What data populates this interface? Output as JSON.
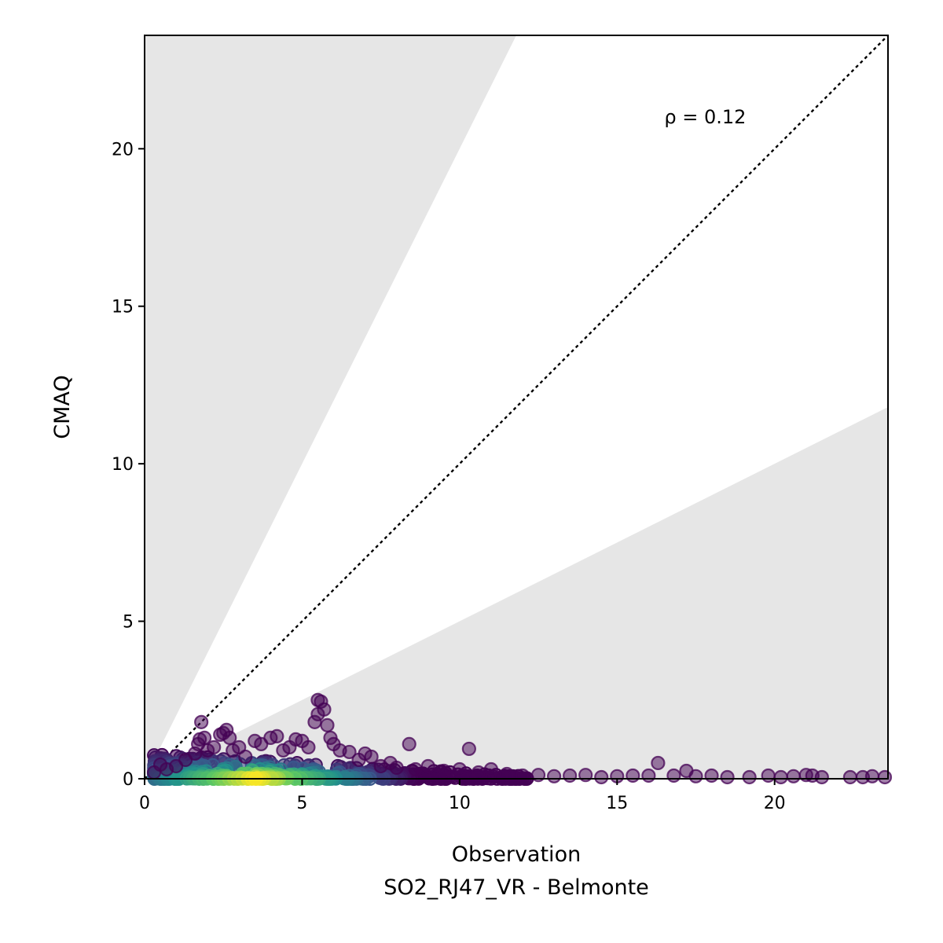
{
  "chart_data": {
    "type": "scatter",
    "title": "",
    "xlabel": "Observation",
    "xlabel_sub": "SO2_RJ47_VR - Belmonte",
    "ylabel": "CMAQ",
    "xlim": [
      0,
      23.6
    ],
    "ylim": [
      0,
      23.6
    ],
    "xticks": [
      0,
      5,
      10,
      15,
      20
    ],
    "yticks": [
      0,
      5,
      10,
      15,
      20
    ],
    "grid": false,
    "legend": "none",
    "annotation": "ρ = 0.12",
    "reference_line": {
      "type": "1:1",
      "style": "dotted",
      "color": "#000000"
    },
    "shaded_regions": [
      {
        "name": "above 2:1",
        "color": "#e6e6e6"
      },
      {
        "name": "below 1:2",
        "color": "#e6e6e6"
      }
    ],
    "colormap": "viridis (point density)",
    "colors": {
      "high_density": "#fde725",
      "mid_density": "#21918c",
      "low_density": "#440154"
    },
    "points": [
      {
        "x": 0.3,
        "y": 0.2
      },
      {
        "x": 0.5,
        "y": 0.45
      },
      {
        "x": 0.7,
        "y": 0.3
      },
      {
        "x": 1.0,
        "y": 0.4
      },
      {
        "x": 1.3,
        "y": 0.6
      },
      {
        "x": 1.6,
        "y": 0.8
      },
      {
        "x": 1.7,
        "y": 1.1
      },
      {
        "x": 1.75,
        "y": 1.25
      },
      {
        "x": 1.8,
        "y": 1.8
      },
      {
        "x": 1.9,
        "y": 1.3
      },
      {
        "x": 2.0,
        "y": 0.9
      },
      {
        "x": 2.2,
        "y": 1.0
      },
      {
        "x": 2.4,
        "y": 1.4
      },
      {
        "x": 2.5,
        "y": 1.45
      },
      {
        "x": 2.6,
        "y": 1.55
      },
      {
        "x": 2.7,
        "y": 1.3
      },
      {
        "x": 2.8,
        "y": 0.9
      },
      {
        "x": 3.0,
        "y": 1.0
      },
      {
        "x": 3.2,
        "y": 0.7
      },
      {
        "x": 3.5,
        "y": 1.2
      },
      {
        "x": 3.7,
        "y": 1.1
      },
      {
        "x": 4.0,
        "y": 1.3
      },
      {
        "x": 4.2,
        "y": 1.35
      },
      {
        "x": 4.4,
        "y": 0.9
      },
      {
        "x": 4.6,
        "y": 1.0
      },
      {
        "x": 4.8,
        "y": 1.25
      },
      {
        "x": 5.0,
        "y": 1.2
      },
      {
        "x": 5.2,
        "y": 1.0
      },
      {
        "x": 5.4,
        "y": 1.8
      },
      {
        "x": 5.5,
        "y": 2.5
      },
      {
        "x": 5.6,
        "y": 2.45
      },
      {
        "x": 5.7,
        "y": 2.2
      },
      {
        "x": 5.5,
        "y": 2.05
      },
      {
        "x": 5.8,
        "y": 1.7
      },
      {
        "x": 5.9,
        "y": 1.3
      },
      {
        "x": 6.0,
        "y": 1.1
      },
      {
        "x": 6.2,
        "y": 0.9
      },
      {
        "x": 6.5,
        "y": 0.85
      },
      {
        "x": 6.8,
        "y": 0.6
      },
      {
        "x": 7.0,
        "y": 0.8
      },
      {
        "x": 7.2,
        "y": 0.7
      },
      {
        "x": 7.5,
        "y": 0.4
      },
      {
        "x": 7.8,
        "y": 0.5
      },
      {
        "x": 8.0,
        "y": 0.35
      },
      {
        "x": 8.4,
        "y": 1.1
      },
      {
        "x": 8.6,
        "y": 0.3
      },
      {
        "x": 9.0,
        "y": 0.4
      },
      {
        "x": 9.5,
        "y": 0.25
      },
      {
        "x": 10.0,
        "y": 0.3
      },
      {
        "x": 10.3,
        "y": 0.95
      },
      {
        "x": 10.6,
        "y": 0.2
      },
      {
        "x": 11.0,
        "y": 0.3
      },
      {
        "x": 11.5,
        "y": 0.15
      },
      {
        "x": 12.0,
        "y": 0.1
      },
      {
        "x": 12.5,
        "y": 0.12
      },
      {
        "x": 13.0,
        "y": 0.08
      },
      {
        "x": 13.5,
        "y": 0.1
      },
      {
        "x": 14.0,
        "y": 0.12
      },
      {
        "x": 14.5,
        "y": 0.05
      },
      {
        "x": 15.0,
        "y": 0.08
      },
      {
        "x": 15.5,
        "y": 0.1
      },
      {
        "x": 16.0,
        "y": 0.1
      },
      {
        "x": 16.3,
        "y": 0.5
      },
      {
        "x": 16.8,
        "y": 0.1
      },
      {
        "x": 17.2,
        "y": 0.25
      },
      {
        "x": 17.5,
        "y": 0.08
      },
      {
        "x": 18.0,
        "y": 0.1
      },
      {
        "x": 18.5,
        "y": 0.05
      },
      {
        "x": 19.2,
        "y": 0.05
      },
      {
        "x": 19.8,
        "y": 0.1
      },
      {
        "x": 20.2,
        "y": 0.05
      },
      {
        "x": 20.6,
        "y": 0.08
      },
      {
        "x": 21.0,
        "y": 0.12
      },
      {
        "x": 21.2,
        "y": 0.1
      },
      {
        "x": 21.5,
        "y": 0.05
      },
      {
        "x": 22.4,
        "y": 0.05
      },
      {
        "x": 22.8,
        "y": 0.05
      },
      {
        "x": 23.1,
        "y": 0.08
      },
      {
        "x": 23.5,
        "y": 0.05
      }
    ]
  }
}
